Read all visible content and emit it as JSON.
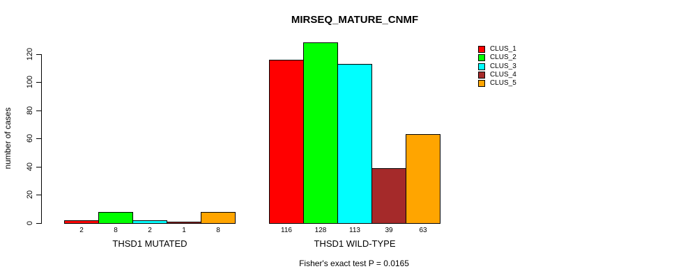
{
  "chart": {
    "title": "MIRSEQ_MATURE_CNMF",
    "ylabel": "number of cases",
    "footer": "Fisher's exact test P = 0.0165"
  },
  "chart_data": {
    "type": "bar",
    "title": "MIRSEQ_MATURE_CNMF",
    "xlabel": "",
    "ylabel": "number of cases",
    "annotation": "Fisher's exact test P = 0.0165",
    "ylim": [
      0,
      130
    ],
    "yticks": [
      0,
      20,
      40,
      60,
      80,
      100,
      120
    ],
    "grid": false,
    "legend_position": "top-right",
    "bar_value_labels": true,
    "series_names": [
      "CLUS_1",
      "CLUS_2",
      "CLUS_3",
      "CLUS_4",
      "CLUS_5"
    ],
    "series_colors": [
      "#ff0000",
      "#00ff00",
      "#00ffff",
      "#a52a2a",
      "#ffa500"
    ],
    "groups": [
      {
        "label": "THSD1 MUTATED",
        "values": [
          2,
          8,
          2,
          1,
          8
        ]
      },
      {
        "label": "THSD1 WILD-TYPE",
        "values": [
          116,
          128,
          113,
          39,
          63
        ]
      }
    ]
  },
  "legend": {
    "items": [
      {
        "label": "CLUS_1",
        "color": "#ff0000"
      },
      {
        "label": "CLUS_2",
        "color": "#00ff00"
      },
      {
        "label": "CLUS_3",
        "color": "#00ffff"
      },
      {
        "label": "CLUS_4",
        "color": "#a52a2a"
      },
      {
        "label": "CLUS_5",
        "color": "#ffa500"
      }
    ]
  },
  "colors": {
    "background": "#ffffff",
    "axis": "#000000",
    "text": "#000000"
  }
}
